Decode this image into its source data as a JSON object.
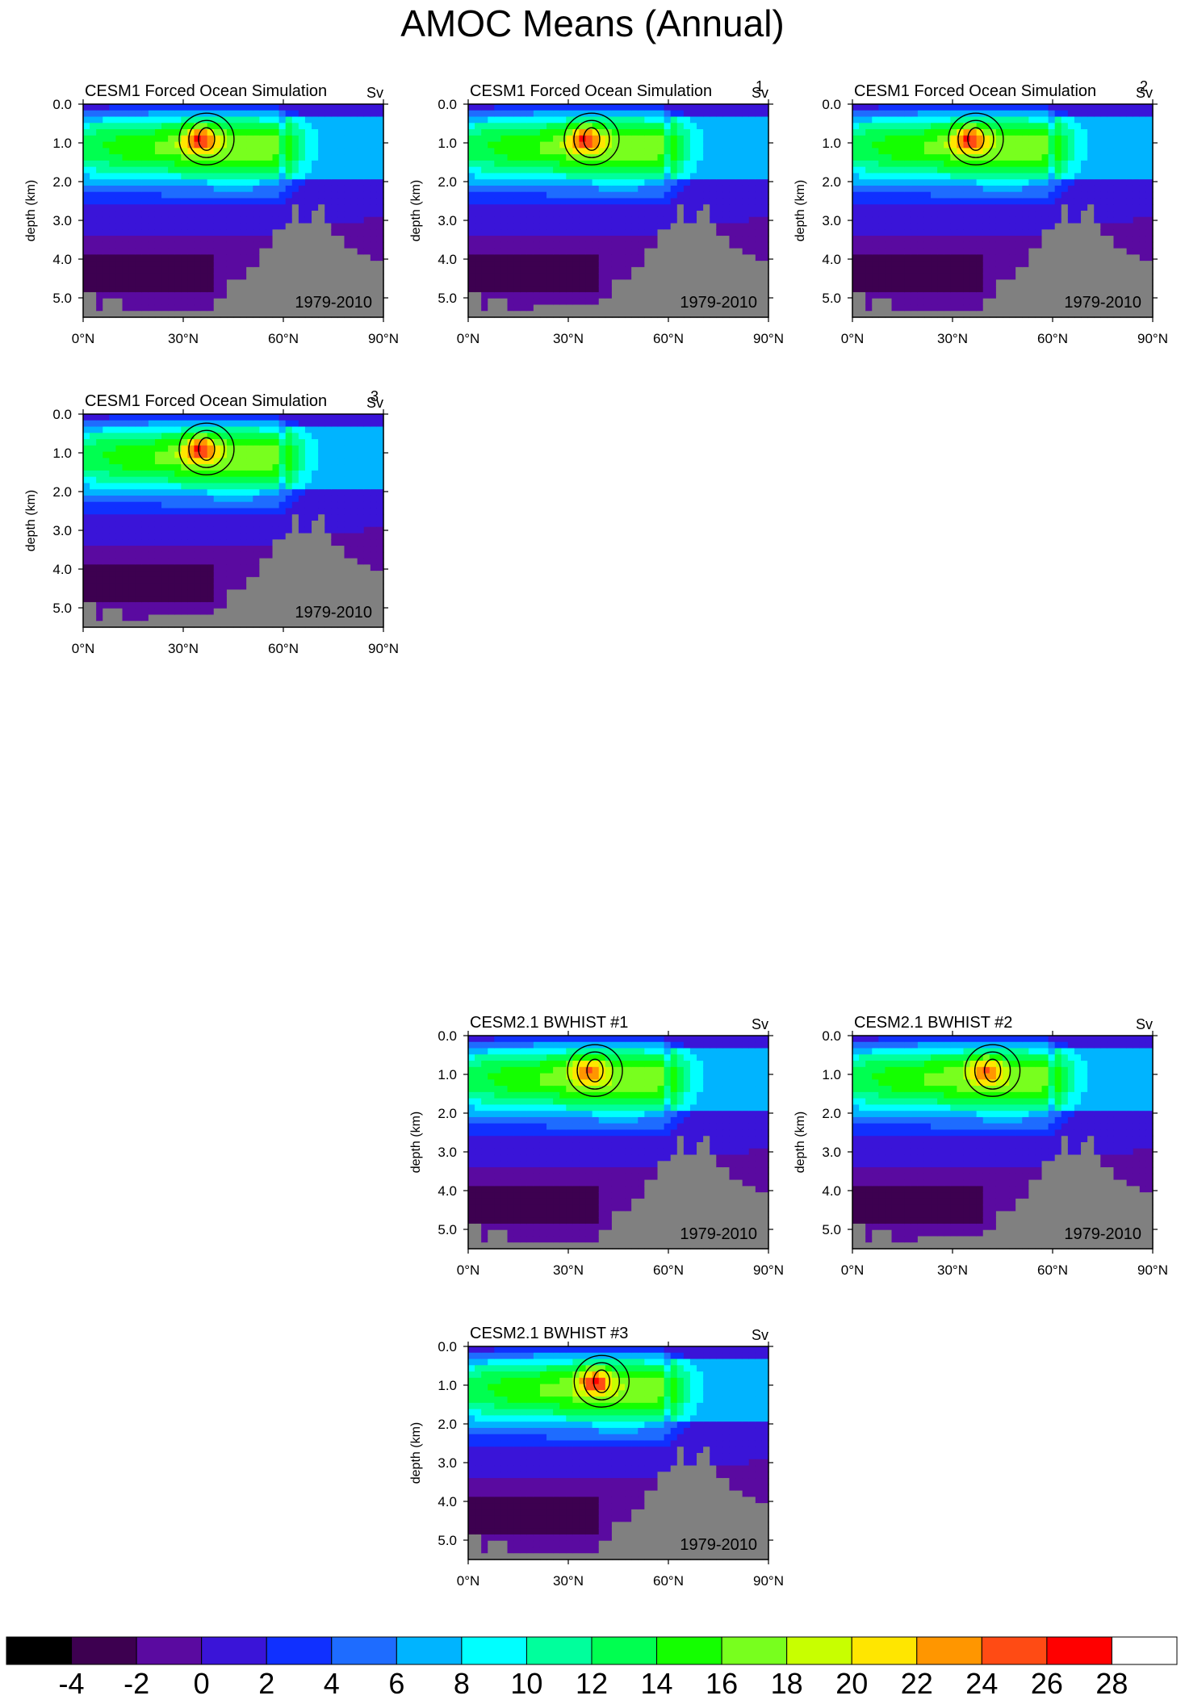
{
  "title": "AMOC Means (Annual)",
  "units": "Sv",
  "period": "1979-2010",
  "ylabel": "depth (km)",
  "xticks": [
    "0°N",
    "30°N",
    "60°N",
    "90°N"
  ],
  "yticks": [
    "0.0",
    "1.0",
    "2.0",
    "3.0",
    "4.0",
    "5.0"
  ],
  "colorbar": {
    "labels": [
      "-4",
      "-2",
      "0",
      "2",
      "4",
      "6",
      "8",
      "10",
      "12",
      "14",
      "16",
      "18",
      "20",
      "22",
      "24",
      "26",
      "28"
    ],
    "colors": [
      "#000000",
      "#3d0050",
      "#5a0aa0",
      "#3a14d8",
      "#1030ff",
      "#1e6cff",
      "#00b4ff",
      "#00ffff",
      "#00ff9c",
      "#00ff50",
      "#14ff00",
      "#78ff1e",
      "#c8ff00",
      "#ffe600",
      "#ff9600",
      "#ff4b14",
      "#ff0000",
      "#ffffff"
    ]
  },
  "land_color": "#808080",
  "panels": [
    {
      "title": "CESM1 Forced Ocean Simulation",
      "units": "Sv",
      "period": "1979-2010"
    },
    {
      "title": "CESM1 Forced Ocean Simulation",
      "units": "Sv",
      "period": "1979-2010",
      "index": "1"
    },
    {
      "title": "CESM1 Forced Ocean Simulation",
      "units": "Sv",
      "period": "1979-2010",
      "index": "2"
    },
    {
      "title": "CESM1 Forced Ocean Simulation",
      "units": "Sv",
      "period": "1979-2010",
      "index": "3"
    },
    {
      "title": "CESM2.1 BWHIST #1",
      "units": "Sv",
      "period": "1979-2010"
    },
    {
      "title": "CESM2.1 BWHIST #2",
      "units": "Sv",
      "period": "1979-2010"
    },
    {
      "title": "CESM2.1 BWHIST #3",
      "units": "Sv",
      "period": "1979-2010"
    }
  ],
  "chart_data": {
    "type": "heatmap",
    "title": "AMOC Means (Annual)",
    "variable_units": "Sv",
    "x_axis": {
      "label": "",
      "range": [
        0,
        90
      ],
      "ticks": [
        0,
        30,
        60,
        90
      ],
      "units": "°N"
    },
    "y_axis": {
      "label": "depth (km)",
      "range": [
        0,
        5.5
      ],
      "ticks": [
        0,
        1,
        2,
        3,
        4,
        5
      ],
      "inverted": true
    },
    "levels": [
      -4,
      -2,
      0,
      2,
      4,
      6,
      8,
      10,
      12,
      14,
      16,
      18,
      20,
      22,
      24,
      26,
      28
    ],
    "panels": [
      {
        "name": "CESM1 Forced Ocean Simulation",
        "period": "1979-2010",
        "max_lat": 35,
        "max_depth_km": 0.9,
        "max_value": 27
      },
      {
        "name": "CESM1 Forced Ocean Simulation 1",
        "period": "1979-2010",
        "max_lat": 35,
        "max_depth_km": 0.9,
        "max_value": 27
      },
      {
        "name": "CESM1 Forced Ocean Simulation 2",
        "period": "1979-2010",
        "max_lat": 35,
        "max_depth_km": 0.9,
        "max_value": 27
      },
      {
        "name": "CESM1 Forced Ocean Simulation 3",
        "period": "1979-2010",
        "max_lat": 35,
        "max_depth_km": 0.9,
        "max_value": 27
      },
      {
        "name": "CESM2.1 BWHIST #1",
        "period": "1979-2010",
        "max_lat": 36,
        "max_depth_km": 0.9,
        "max_value": 25
      },
      {
        "name": "CESM2.1 BWHIST #2",
        "period": "1979-2010",
        "max_lat": 40,
        "max_depth_km": 0.9,
        "max_value": 25
      },
      {
        "name": "CESM2.1 BWHIST #3",
        "period": "1979-2010",
        "max_lat": 38,
        "max_depth_km": 0.9,
        "max_value": 27
      }
    ]
  }
}
